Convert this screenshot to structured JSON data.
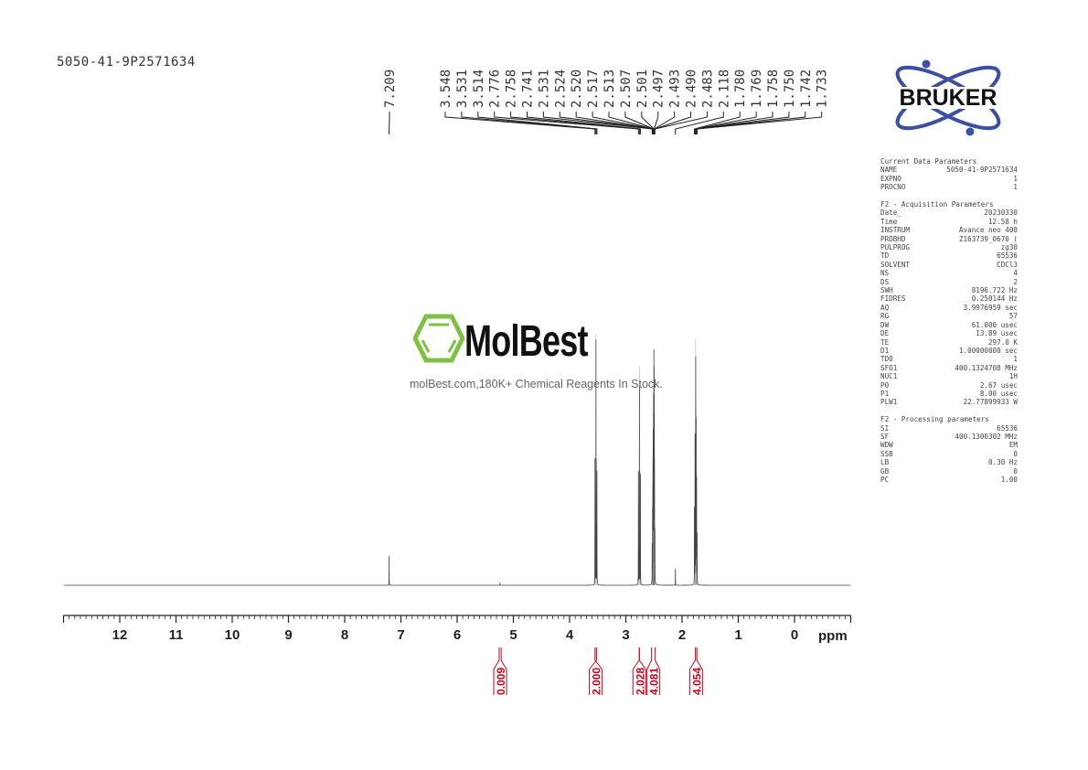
{
  "sample_id": "5050-41-9P2571634",
  "logo": {
    "brand": "BRUKER",
    "brand_color": "#3b4fa3"
  },
  "watermark": {
    "name": "MolBest",
    "tagline": "molBest.com,180K+ Chemical Reagents In Stock.",
    "icon": "benzene-hexagon-icon",
    "icon_color": "#7dc242"
  },
  "params": {
    "current_title": "Current Data Parameters",
    "current": [
      [
        "NAME",
        "5050-41-9P2571634"
      ],
      [
        "EXPNO",
        "1"
      ],
      [
        "PROCNO",
        "1"
      ]
    ],
    "acq_title": "F2 - Acquisition Parameters",
    "acq": [
      [
        "Date_",
        "20230330"
      ],
      [
        "Time",
        "12.58 h"
      ],
      [
        "INSTRUM",
        "Avance neo 400"
      ],
      [
        "PROBHD",
        "Z163739_0670 ("
      ],
      [
        "PULPROG",
        "zg30"
      ],
      [
        "TD",
        "65536"
      ],
      [
        "SOLVENT",
        "CDCl3"
      ],
      [
        "NS",
        "4"
      ],
      [
        "DS",
        "2"
      ],
      [
        "SWH",
        "8196.722 Hz"
      ],
      [
        "FIDRES",
        "0.250144 Hz"
      ],
      [
        "AQ",
        "3.9976959 sec"
      ],
      [
        "RG",
        "57"
      ],
      [
        "DW",
        "61.000 usec"
      ],
      [
        "DE",
        "13.89 usec"
      ],
      [
        "TE",
        "297.0 K"
      ],
      [
        "D1",
        "1.00000000 sec"
      ],
      [
        "TD0",
        "1"
      ],
      [
        "SFO1",
        "400.1324708 MHz"
      ],
      [
        "NUC1",
        "1H"
      ],
      [
        "P0",
        "2.67 usec"
      ],
      [
        "P1",
        "8.00 usec"
      ],
      [
        "PLW1",
        "22.77899933 W"
      ]
    ],
    "proc_title": "F2 - Processing parameters",
    "proc": [
      [
        "SI",
        "65536"
      ],
      [
        "SF",
        "400.1300302 MHz"
      ],
      [
        "WDW",
        "EM"
      ],
      [
        "SSB",
        "0"
      ],
      [
        "LB",
        "0.30 Hz"
      ],
      [
        "GB",
        "0"
      ],
      [
        "PC",
        "1.00"
      ]
    ]
  },
  "chart_data": {
    "type": "line",
    "xlabel": "ppm",
    "xlim": [
      13.0,
      -1.0
    ],
    "x_reversed": true,
    "xticks": [
      12,
      11,
      10,
      9,
      8,
      7,
      6,
      5,
      4,
      3,
      2,
      1,
      0
    ],
    "grid": false,
    "line_color": "#444444",
    "integral_color": "#d0021b",
    "peak_labels_group1": [
      "7.209"
    ],
    "peak_labels_group2": [
      "3.548",
      "3.531",
      "3.514",
      "2.776",
      "2.758",
      "2.741",
      "2.531",
      "2.524",
      "2.520",
      "2.517",
      "2.513",
      "2.507",
      "2.501",
      "2.497",
      "2.493",
      "2.490",
      "2.483",
      "2.118",
      "1.780",
      "1.769",
      "1.758",
      "1.750",
      "1.742",
      "1.733"
    ],
    "peaks": [
      {
        "ppm": 7.209,
        "rel_intensity": 0.12
      },
      {
        "ppm": 5.24,
        "rel_intensity": 0.01
      },
      {
        "ppm": 3.548,
        "rel_intensity": 0.5
      },
      {
        "ppm": 3.531,
        "rel_intensity": 1.0
      },
      {
        "ppm": 3.514,
        "rel_intensity": 0.5
      },
      {
        "ppm": 2.776,
        "rel_intensity": 0.45
      },
      {
        "ppm": 2.758,
        "rel_intensity": 0.87
      },
      {
        "ppm": 2.741,
        "rel_intensity": 0.45
      },
      {
        "ppm": 2.531,
        "rel_intensity": 0.15
      },
      {
        "ppm": 2.524,
        "rel_intensity": 0.25
      },
      {
        "ppm": 2.52,
        "rel_intensity": 0.3
      },
      {
        "ppm": 2.517,
        "rel_intensity": 0.4
      },
      {
        "ppm": 2.513,
        "rel_intensity": 0.55
      },
      {
        "ppm": 2.507,
        "rel_intensity": 0.7
      },
      {
        "ppm": 2.501,
        "rel_intensity": 0.84
      },
      {
        "ppm": 2.497,
        "rel_intensity": 0.75
      },
      {
        "ppm": 2.493,
        "rel_intensity": 0.55
      },
      {
        "ppm": 2.49,
        "rel_intensity": 0.4
      },
      {
        "ppm": 2.483,
        "rel_intensity": 0.2
      },
      {
        "ppm": 2.118,
        "rel_intensity": 0.07
      },
      {
        "ppm": 1.78,
        "rel_intensity": 0.3
      },
      {
        "ppm": 1.769,
        "rel_intensity": 0.6
      },
      {
        "ppm": 1.758,
        "rel_intensity": 0.98
      },
      {
        "ppm": 1.75,
        "rel_intensity": 0.7
      },
      {
        "ppm": 1.742,
        "rel_intensity": 0.45
      },
      {
        "ppm": 1.733,
        "rel_intensity": 0.2
      }
    ],
    "integrals": [
      {
        "from": 5.35,
        "to": 5.12,
        "value": "0.009"
      },
      {
        "from": 3.62,
        "to": 3.45,
        "value": "2.000"
      },
      {
        "from": 2.86,
        "to": 2.66,
        "value": "2.028"
      },
      {
        "from": 2.64,
        "to": 2.38,
        "value": "4.081"
      },
      {
        "from": 1.86,
        "to": 1.64,
        "value": "4.054"
      }
    ]
  }
}
